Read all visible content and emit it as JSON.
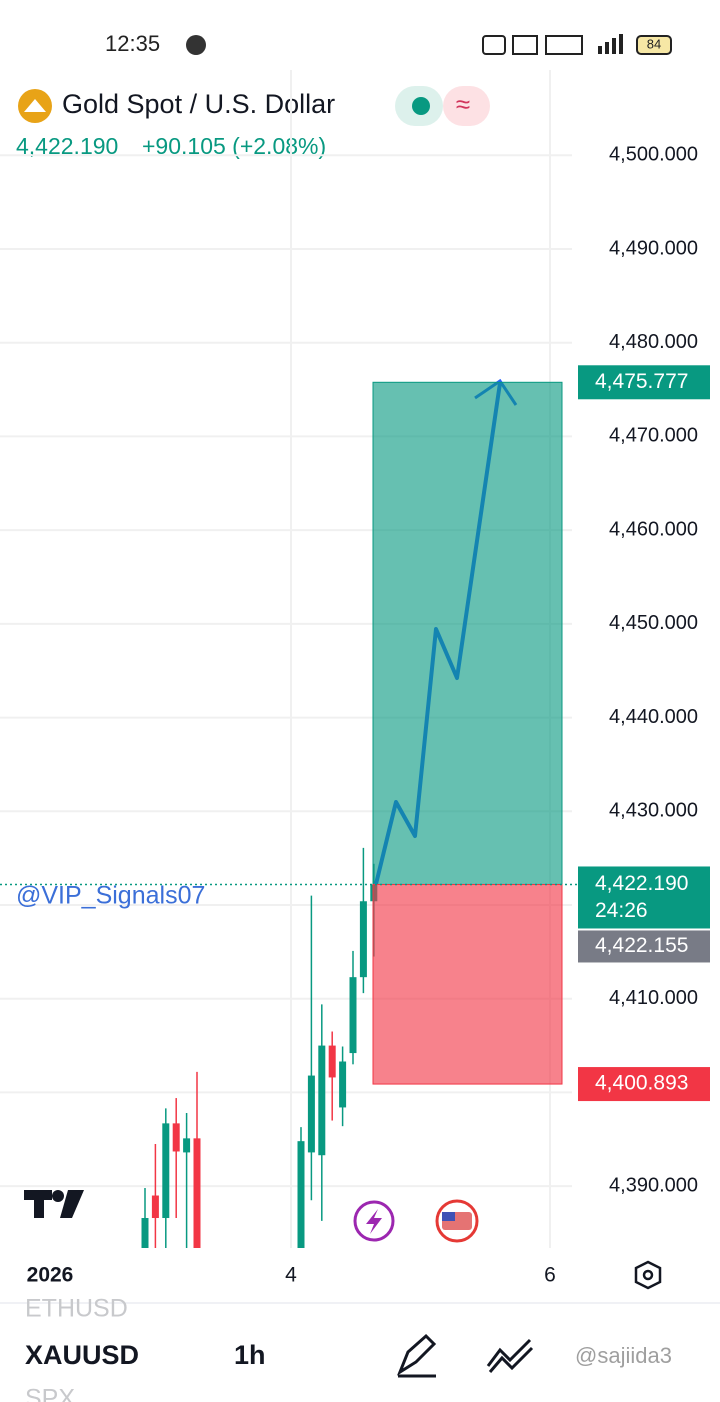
{
  "status_bar": {
    "time": "12:35",
    "battery": "84"
  },
  "header": {
    "title": "Gold Spot / U.S. Dollar",
    "price": "4,422.190",
    "change": "+90.105 (+2.08%)"
  },
  "watermark": "@VIP_Signals07",
  "chart_data": {
    "type": "candlestick",
    "up_color": "#089981",
    "down_color": "#f23645",
    "ylim": [
      4383.4,
      4509.1
    ],
    "yticks": [
      {
        "value": 4500,
        "label": "4,500.000"
      },
      {
        "value": 4490,
        "label": "4,490.000"
      },
      {
        "value": 4480,
        "label": "4,480.000"
      },
      {
        "value": 4470,
        "label": "4,470.000"
      },
      {
        "value": 4460,
        "label": "4,460.000"
      },
      {
        "value": 4450,
        "label": "4,450.000"
      },
      {
        "value": 4440,
        "label": "4,440.000"
      },
      {
        "value": 4430,
        "label": "4,430.000"
      },
      {
        "value": 4420,
        "label": "4,420.000"
      },
      {
        "value": 4410,
        "label": "4,410.000"
      },
      {
        "value": 4400,
        "label": "4,400.000"
      },
      {
        "value": 4390,
        "label": "4,390.000"
      }
    ],
    "open": [
      4383,
      4389,
      4386.6,
      4396.7,
      4393.6,
      4395.1,
      null,
      null,
      null,
      null,
      null,
      null,
      null,
      null,
      null,
      4380,
      4393.6,
      4393.3,
      4405,
      4398.4,
      4404.2,
      4412.3,
      4420.4
    ],
    "high": [
      4389.8,
      4394.5,
      4398.3,
      4399.4,
      4397.8,
      4402.2,
      null,
      null,
      null,
      null,
      null,
      null,
      null,
      null,
      null,
      4396.3,
      4421,
      4409.4,
      4406.5,
      4404.9,
      4415.1,
      4426.1,
      4424.4
    ],
    "low": [
      4380,
      4380,
      4383,
      4386.6,
      4383,
      4380,
      null,
      null,
      null,
      null,
      null,
      null,
      null,
      null,
      null,
      4380,
      4388.5,
      4386.3,
      4397,
      4396.4,
      4403,
      4410.6,
      4414.5
    ],
    "close": [
      4386.6,
      4386.6,
      4396.7,
      4393.7,
      4395.1,
      4383,
      null,
      null,
      null,
      null,
      null,
      null,
      null,
      null,
      null,
      4394.8,
      4401.8,
      4405,
      4401.6,
      4403.3,
      4412.3,
      4420.4,
      4422.19
    ],
    "markers": [
      {
        "value": 4475.777,
        "label": "4,475.777",
        "color": "#089981"
      },
      {
        "value": 4422.19,
        "label": "4,422.190",
        "color": "#089981",
        "countdown": "24:26"
      },
      {
        "value": 4400.893,
        "label": "4,400.893",
        "color": "#f23645"
      }
    ],
    "prev_price": {
      "label": "4,422.155",
      "color": "#787b86"
    },
    "x_labels": [
      "2026",
      "4",
      "6"
    ]
  },
  "bottom_bar": {
    "symbols": [
      "ETHUSD",
      "XAUUSD",
      "SPX"
    ],
    "interval": "1h"
  },
  "credit": "@sajiida3"
}
